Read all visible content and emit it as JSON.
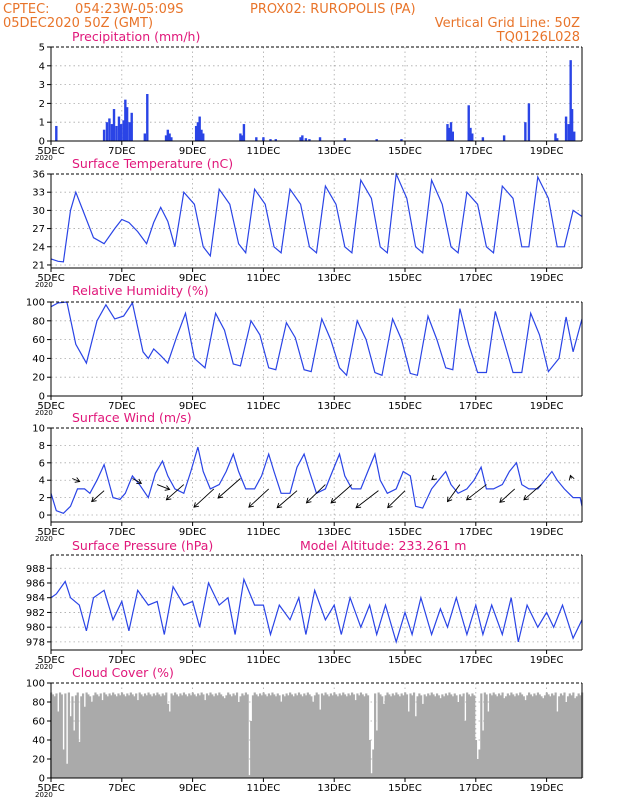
{
  "header": {
    "line1_left": "CPTEC:",
    "line1_coords": "054:23W-05:09S",
    "line1_station": "PROX02: RUROPOLIS (PA)",
    "line2_left": "05DEC2020 50Z (GMT)",
    "line2_right": "Vertical Grid Line: 50Z",
    "line3_right": "TQ0126L028"
  },
  "colors": {
    "header": "#e8742a",
    "title": "#e0177a",
    "line": "#2a44e6",
    "bar": "#2a44e6",
    "cloud": "#aaaaaa"
  },
  "x_axis": {
    "tick_labels": [
      "5DEC",
      "7DEC",
      "9DEC",
      "11DEC",
      "13DEC",
      "15DEC",
      "17DEC",
      "19DEC"
    ],
    "tick_days": [
      0,
      2,
      4,
      6,
      8,
      10,
      12,
      14
    ],
    "range_days": [
      0,
      15
    ],
    "year_label": "2020"
  },
  "chart_data": [
    {
      "id": "precip",
      "type": "bar",
      "title": "Precipitation (mm/h)",
      "ylim": [
        0,
        5
      ],
      "yticks": [
        0,
        1,
        2,
        3,
        4,
        5
      ],
      "grid": true,
      "x": [
        0.15,
        1.5,
        1.58,
        1.65,
        1.72,
        1.78,
        1.85,
        1.92,
        1.98,
        2.05,
        2.1,
        2.15,
        2.22,
        2.28,
        2.65,
        2.72,
        3.25,
        3.3,
        3.35,
        3.4,
        4.1,
        4.15,
        4.2,
        4.25,
        4.3,
        5.35,
        5.4,
        5.45,
        5.8,
        6.0,
        6.2,
        6.35,
        7.05,
        7.1,
        7.2,
        7.3,
        7.6,
        8.3,
        9.2,
        9.9,
        11.2,
        11.25,
        11.3,
        11.35,
        11.8,
        11.85,
        11.9,
        12.2,
        12.8,
        13.4,
        13.5,
        14.25,
        14.3,
        14.55,
        14.62,
        14.68,
        14.72,
        14.78
      ],
      "values": [
        0.8,
        0.6,
        1.0,
        1.2,
        0.9,
        1.7,
        0.8,
        1.3,
        0.9,
        1.1,
        2.2,
        1.8,
        1.0,
        1.5,
        0.4,
        2.5,
        0.3,
        0.6,
        0.4,
        0.2,
        0.8,
        1.0,
        1.3,
        0.6,
        0.4,
        0.4,
        0.3,
        0.9,
        0.2,
        0.2,
        0.1,
        0.1,
        0.2,
        0.3,
        0.15,
        0.1,
        0.2,
        0.15,
        0.1,
        0.1,
        0.9,
        0.7,
        1.0,
        0.5,
        1.9,
        0.7,
        0.4,
        0.2,
        0.3,
        1.0,
        2.0,
        0.4,
        0.15,
        1.3,
        0.9,
        4.3,
        1.7,
        0.5
      ]
    },
    {
      "id": "temp",
      "type": "line",
      "title": "Surface Temperature (nC)",
      "ylim": [
        20.5,
        36
      ],
      "yticks": [
        21,
        24,
        27,
        30,
        33,
        36
      ],
      "grid": true,
      "series": [
        {
          "x": [
            0,
            0.2,
            0.35,
            0.55,
            0.7,
            0.9,
            1.2,
            1.5,
            1.8,
            2.0,
            2.2,
            2.45,
            2.7,
            2.9,
            3.1,
            3.3,
            3.5,
            3.75,
            4.05,
            4.3,
            4.5,
            4.75,
            5.05,
            5.3,
            5.5,
            5.75,
            6.05,
            6.3,
            6.5,
            6.75,
            7.05,
            7.3,
            7.5,
            7.75,
            8.05,
            8.3,
            8.5,
            8.75,
            9.05,
            9.3,
            9.5,
            9.75,
            10.05,
            10.3,
            10.5,
            10.75,
            11.05,
            11.3,
            11.5,
            11.75,
            12.05,
            12.3,
            12.5,
            12.75,
            13.05,
            13.3,
            13.5,
            13.75,
            14.05,
            14.3,
            14.5,
            14.75,
            15.0
          ],
          "y": [
            22,
            21.6,
            21.5,
            30,
            33,
            30,
            25.5,
            24.5,
            27,
            28.5,
            28,
            26.5,
            24.5,
            28,
            30.5,
            28.2,
            24,
            33,
            31,
            24,
            22.5,
            33.5,
            31,
            24.5,
            23,
            33.5,
            31,
            24,
            23,
            33.5,
            31,
            24,
            23,
            34,
            31,
            24,
            23,
            35,
            32,
            24,
            23,
            36,
            32,
            24,
            23,
            35,
            31,
            24,
            23,
            33,
            31,
            24,
            23,
            34,
            32,
            24,
            24,
            35.5,
            32,
            24,
            24,
            30,
            29
          ]
        }
      ]
    },
    {
      "id": "rh",
      "type": "line",
      "title": "Relative Humidity (%)",
      "ylim": [
        0,
        100
      ],
      "yticks": [
        0,
        20,
        40,
        60,
        80,
        100
      ],
      "grid": true,
      "series": [
        {
          "x": [
            0,
            0.2,
            0.45,
            0.7,
            1.0,
            1.3,
            1.55,
            1.8,
            2.05,
            2.3,
            2.6,
            2.75,
            2.9,
            3.1,
            3.3,
            3.55,
            3.8,
            4.05,
            4.35,
            4.65,
            4.9,
            5.15,
            5.35,
            5.65,
            5.9,
            6.15,
            6.35,
            6.65,
            6.9,
            7.15,
            7.35,
            7.65,
            7.9,
            8.15,
            8.35,
            8.65,
            8.9,
            9.15,
            9.35,
            9.65,
            9.9,
            10.15,
            10.35,
            10.65,
            10.9,
            11.15,
            11.35,
            11.55,
            11.8,
            12.05,
            12.3,
            12.55,
            12.8,
            13.05,
            13.3,
            13.55,
            13.8,
            14.05,
            14.35,
            14.55,
            14.75,
            15.0
          ],
          "y": [
            95,
            99,
            100,
            55,
            35,
            80,
            97,
            82,
            85,
            99,
            47,
            40,
            50,
            43,
            35,
            63,
            88,
            40,
            30,
            88,
            70,
            34,
            32,
            80,
            65,
            30,
            28,
            78,
            62,
            28,
            26,
            82,
            60,
            30,
            22,
            80,
            60,
            25,
            22,
            82,
            60,
            24,
            22,
            85,
            60,
            30,
            28,
            93,
            55,
            25,
            25,
            90,
            58,
            25,
            25,
            88,
            65,
            26,
            40,
            84,
            47,
            82
          ]
        }
      ]
    },
    {
      "id": "wind",
      "type": "line",
      "title": "Surface Wind (m/s)",
      "ylim": [
        -0.8,
        10
      ],
      "yticks": [
        0,
        2,
        4,
        6,
        8,
        10
      ],
      "grid": true,
      "series": [
        {
          "x": [
            0,
            0.15,
            0.35,
            0.55,
            0.75,
            0.95,
            1.1,
            1.3,
            1.5,
            1.75,
            1.95,
            2.1,
            2.3,
            2.5,
            2.75,
            2.95,
            3.15,
            3.3,
            3.5,
            3.75,
            3.95,
            4.15,
            4.3,
            4.5,
            4.75,
            4.95,
            5.15,
            5.3,
            5.5,
            5.75,
            5.95,
            6.15,
            6.3,
            6.5,
            6.75,
            6.95,
            7.15,
            7.3,
            7.5,
            7.75,
            7.95,
            8.15,
            8.3,
            8.5,
            8.75,
            8.95,
            9.15,
            9.3,
            9.5,
            9.75,
            9.95,
            10.15,
            10.3,
            10.5,
            10.75,
            10.95,
            11.15,
            11.3,
            11.5,
            11.75,
            11.95,
            12.15,
            12.3,
            12.5,
            12.75,
            12.95,
            13.15,
            13.3,
            13.5,
            13.75,
            13.95,
            14.15,
            14.3,
            14.5,
            14.75,
            14.95,
            15.0
          ],
          "y": [
            2.5,
            0.5,
            0.2,
            1.0,
            3.0,
            3.0,
            2.5,
            4.0,
            5.8,
            2.0,
            1.8,
            2.5,
            4.5,
            3.5,
            2.0,
            4.8,
            6.2,
            4.5,
            3.0,
            2.5,
            5.0,
            7.8,
            5.0,
            3.0,
            3.5,
            5.0,
            7.0,
            5.0,
            3.0,
            3.0,
            4.5,
            7.0,
            5.0,
            2.5,
            2.5,
            5.5,
            7.0,
            5.0,
            2.5,
            3.0,
            5.0,
            7.0,
            4.5,
            3.0,
            3.0,
            5.0,
            7.0,
            4.0,
            2.5,
            3.0,
            5.0,
            4.5,
            1.0,
            0.8,
            3.0,
            4.0,
            5.0,
            3.5,
            2.5,
            3.0,
            4.0,
            5.5,
            3.0,
            3.0,
            3.5,
            5.0,
            6.0,
            3.5,
            3.0,
            3.0,
            4.0,
            5.0,
            4.0,
            3.0,
            2.0,
            2.0,
            1.0
          ]
        }
      ],
      "wind_vectors": {
        "x": [
          0.6,
          1.5,
          2.3,
          3.0,
          3.75,
          4.6,
          5.35,
          6.15,
          6.95,
          7.75,
          8.5,
          9.25,
          10.0,
          10.8,
          11.55,
          12.3,
          13.1,
          13.85,
          14.7
        ],
        "y": [
          4.2,
          2.8,
          4.2,
          3.5,
          3.5,
          3.0,
          4.2,
          3.0,
          2.8,
          3.5,
          3.5,
          2.8,
          2.8,
          4.2,
          3.5,
          3.5,
          3.0,
          3.5,
          4.2
        ],
        "u": [
          -1.5,
          2.5,
          -1.8,
          -2.5,
          3.5,
          4.0,
          4.5,
          4.0,
          4.0,
          3.8,
          4.2,
          4.5,
          3.5,
          0.3,
          2.5,
          4.0,
          3.0,
          3.5,
          0.2
        ],
        "v": [
          0.5,
          1.8,
          0.8,
          0.8,
          2.5,
          3.0,
          3.2,
          3.0,
          2.8,
          3.0,
          3.0,
          2.8,
          2.8,
          0.2,
          2.8,
          2.5,
          2.2,
          2.5,
          -0.5
        ]
      }
    },
    {
      "id": "pres",
      "type": "line",
      "title": "Surface Pressure (hPa)",
      "annotation": "Model Altitude: 233.261 m",
      "ylim": [
        976.9,
        989.8
      ],
      "yticks": [
        978,
        980,
        982,
        984,
        986,
        988
      ],
      "grid": true,
      "series": [
        {
          "x": [
            0,
            0.15,
            0.4,
            0.55,
            0.8,
            1.0,
            1.2,
            1.5,
            1.75,
            2.0,
            2.2,
            2.45,
            2.75,
            3.0,
            3.2,
            3.45,
            3.75,
            4.0,
            4.2,
            4.45,
            4.75,
            5.0,
            5.2,
            5.45,
            5.75,
            6.0,
            6.2,
            6.45,
            6.75,
            7.0,
            7.2,
            7.45,
            7.75,
            8.0,
            8.2,
            8.45,
            8.75,
            9.0,
            9.2,
            9.45,
            9.75,
            10.0,
            10.2,
            10.45,
            10.75,
            11.0,
            11.2,
            11.45,
            11.75,
            12.0,
            12.2,
            12.45,
            12.75,
            13.0,
            13.2,
            13.45,
            13.75,
            14.0,
            14.2,
            14.45,
            14.75,
            15.0
          ],
          "y": [
            984,
            984.5,
            986.2,
            984,
            983.0,
            979.5,
            984,
            985,
            981,
            983.5,
            979.5,
            985,
            983,
            983.5,
            979,
            985.5,
            983,
            983.5,
            980,
            986,
            983,
            984,
            979,
            986.5,
            983,
            983,
            979,
            983,
            981,
            984,
            979,
            985,
            981,
            983,
            979,
            984,
            980,
            983,
            979,
            983,
            978,
            982,
            979,
            984,
            979,
            982.5,
            980,
            984,
            979,
            983,
            979,
            983,
            979,
            984,
            978,
            983,
            980,
            982,
            980,
            983,
            978.5,
            981
          ]
        }
      ]
    },
    {
      "id": "cloud",
      "type": "area",
      "title": "Cloud Cover (%)",
      "ylim": [
        0,
        100
      ],
      "yticks": [
        0,
        20,
        40,
        60,
        80,
        100
      ],
      "grid": true,
      "step": 0.05,
      "base": 90,
      "dips": [
        {
          "x": 0.2,
          "y": 70
        },
        {
          "x": 0.35,
          "y": 30
        },
        {
          "x": 0.45,
          "y": 15
        },
        {
          "x": 0.55,
          "y": 65
        },
        {
          "x": 0.65,
          "y": 50
        },
        {
          "x": 0.8,
          "y": 38
        },
        {
          "x": 0.95,
          "y": 75
        },
        {
          "x": 1.15,
          "y": 80
        },
        {
          "x": 1.45,
          "y": 82
        },
        {
          "x": 2.45,
          "y": 82
        },
        {
          "x": 3.3,
          "y": 78
        },
        {
          "x": 3.35,
          "y": 70
        },
        {
          "x": 4.35,
          "y": 82
        },
        {
          "x": 4.9,
          "y": 84
        },
        {
          "x": 5.3,
          "y": 80
        },
        {
          "x": 5.6,
          "y": 3
        },
        {
          "x": 5.65,
          "y": 60
        },
        {
          "x": 6.5,
          "y": 80
        },
        {
          "x": 7.4,
          "y": 80
        },
        {
          "x": 7.6,
          "y": 72
        },
        {
          "x": 8.6,
          "y": 82
        },
        {
          "x": 9.0,
          "y": 40
        },
        {
          "x": 9.05,
          "y": 5
        },
        {
          "x": 9.1,
          "y": 30
        },
        {
          "x": 9.2,
          "y": 50
        },
        {
          "x": 9.4,
          "y": 78
        },
        {
          "x": 10.1,
          "y": 70
        },
        {
          "x": 10.3,
          "y": 65
        },
        {
          "x": 10.5,
          "y": 78
        },
        {
          "x": 11.0,
          "y": 84
        },
        {
          "x": 11.5,
          "y": 80
        },
        {
          "x": 11.7,
          "y": 60
        },
        {
          "x": 12.0,
          "y": 40
        },
        {
          "x": 12.05,
          "y": 20
        },
        {
          "x": 12.1,
          "y": 30
        },
        {
          "x": 12.2,
          "y": 50
        },
        {
          "x": 12.35,
          "y": 70
        },
        {
          "x": 12.8,
          "y": 84
        },
        {
          "x": 13.4,
          "y": 82
        },
        {
          "x": 13.9,
          "y": 84
        },
        {
          "x": 14.3,
          "y": 70
        },
        {
          "x": 14.55,
          "y": 80
        },
        {
          "x": 14.8,
          "y": 84
        }
      ]
    }
  ]
}
